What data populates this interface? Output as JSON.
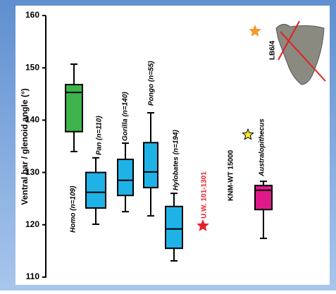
{
  "chart_data": {
    "type": "box",
    "y_label": "Ventral bar / glenoid angle (°)",
    "ylim": [
      110,
      160
    ],
    "yticks": [
      110,
      120,
      130,
      140,
      150,
      160
    ],
    "categories": [
      "Homo (n=109)",
      "Pan (n=110)",
      "Gorilla (n=140)",
      "Pongo (n=55)",
      "Hylobates (n=194)",
      "Australopithecus"
    ],
    "boxes": [
      {
        "color": "#3cb44a",
        "min": 134,
        "q1": 137.8,
        "median": 145.3,
        "q3": 146.8,
        "max": 150.7
      },
      {
        "color": "#1fb2e6",
        "min": 120.1,
        "q1": 123.2,
        "median": 126.2,
        "q3": 130,
        "max": 132.8
      },
      {
        "color": "#1fb2e6",
        "min": 122.5,
        "q1": 125.6,
        "median": 128.5,
        "q3": 132.5,
        "max": 135.6
      },
      {
        "color": "#1fb2e6",
        "min": 121.7,
        "q1": 127.1,
        "median": 130.1,
        "q3": 135.7,
        "max": 141.4
      },
      {
        "color": "#1fb2e6",
        "min": 113.1,
        "q1": 115.5,
        "median": 119.2,
        "q3": 123.5,
        "max": 126
      },
      {
        "color": "#e0198a",
        "min": 117.4,
        "q1": 122.9,
        "median": 126.6,
        "q3": 127.5,
        "max": 128.3
      }
    ],
    "points": [
      {
        "label": "U.W. 101-1301",
        "value": 119.8,
        "color": "#e8202a"
      },
      {
        "label": "KNM-WT 15000",
        "value": 137.2,
        "color": "#f5ec2a"
      },
      {
        "label": "LB6/4",
        "value": 157,
        "color": "#f39a2c"
      }
    ]
  }
}
